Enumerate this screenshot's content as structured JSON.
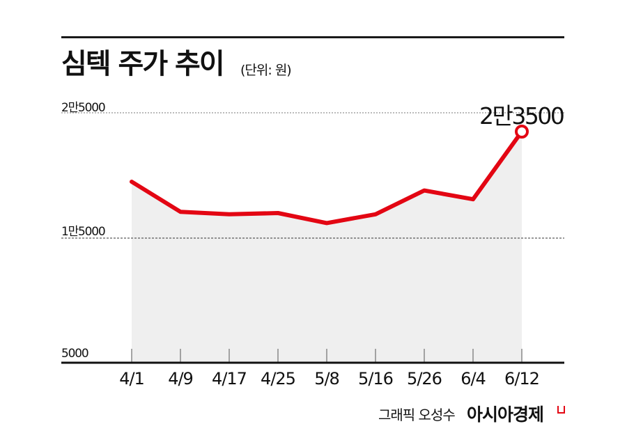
{
  "header": {
    "title": "심텍 주가 추이",
    "unit": "(단위: 원)"
  },
  "footer": {
    "credit": "그래픽 오성수",
    "brand": "아시아경제"
  },
  "colors": {
    "line": "#e30613",
    "area": "#efefef",
    "axis": "#111111",
    "grid": "#555555"
  },
  "y_axis_labels": [
    "2만5000",
    "1만5000",
    "5000"
  ],
  "callout": {
    "label": "2만3500",
    "date": "6/12"
  },
  "chart_data": {
    "type": "area",
    "title": "심텍 주가 추이",
    "subtitle": "(단위: 원)",
    "categories": [
      "4/1",
      "4/9",
      "4/17",
      "4/25",
      "5/8",
      "5/16",
      "5/26",
      "6/4",
      "6/12"
    ],
    "series": [
      {
        "name": "심텍 주가",
        "values": [
          19500,
          17100,
          16900,
          17000,
          16200,
          16900,
          18800,
          18100,
          23500
        ]
      }
    ],
    "yticks": [
      5000,
      15000,
      25000
    ],
    "ytick_labels": [
      "5000",
      "1만5000",
      "2만5000"
    ],
    "ylim": [
      5000,
      25000
    ],
    "xlabel": "",
    "ylabel": "원",
    "grid": "dotted horizontal at 15000 and 25000",
    "annotations": [
      {
        "x": "6/12",
        "y": 23500,
        "text": "2만3500"
      }
    ],
    "legend": "none",
    "source": "아시아경제",
    "credit": "그래픽 오성수"
  }
}
